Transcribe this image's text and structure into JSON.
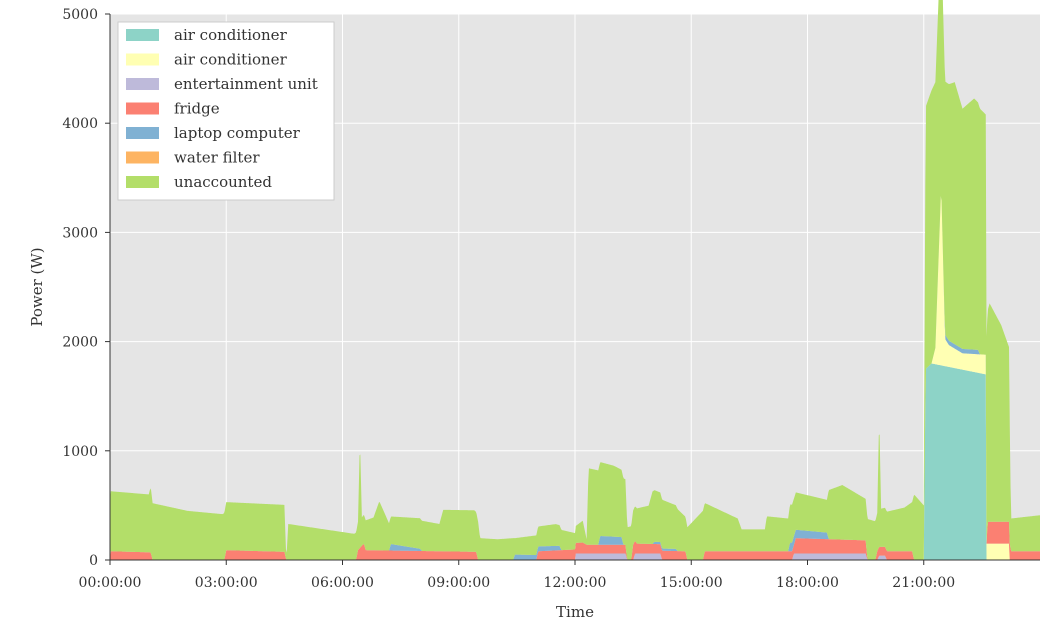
{
  "chart_data": {
    "type": "area",
    "stacked": true,
    "title": "",
    "xlabel": "Time",
    "ylabel": "Power (W)",
    "ylim": [
      0,
      5000
    ],
    "xlim_hours": [
      0,
      24
    ],
    "x_ticks": [
      "00:00:00",
      "03:00:00",
      "06:00:00",
      "09:00:00",
      "12:00:00",
      "15:00:00",
      "18:00:00",
      "21:00:00"
    ],
    "y_ticks": [
      "0",
      "1000",
      "2000",
      "3000",
      "4000",
      "5000"
    ],
    "grid": true,
    "legend_position": "top-left",
    "x_unit": "hours since 00:00:00",
    "series": [
      {
        "name": "air conditioner",
        "color": "#8dd3c7",
        "points": [
          [
            0,
            0
          ],
          [
            21.0,
            0
          ],
          [
            21.05,
            1750
          ],
          [
            21.2,
            1800
          ],
          [
            22.6,
            1700
          ],
          [
            22.62,
            0
          ],
          [
            24,
            0
          ]
        ]
      },
      {
        "name": "air conditioner",
        "color": "#ffffb3",
        "points": [
          [
            0,
            0
          ],
          [
            21.2,
            0
          ],
          [
            21.3,
            150
          ],
          [
            21.45,
            1650
          ],
          [
            21.55,
            250
          ],
          [
            21.65,
            200
          ],
          [
            22.0,
            150
          ],
          [
            22.6,
            180
          ],
          [
            22.62,
            150
          ],
          [
            23.2,
            150
          ],
          [
            23.22,
            0
          ],
          [
            24,
            0
          ]
        ]
      },
      {
        "name": "entertainment unit",
        "color": "#bebada",
        "points": [
          [
            0,
            0
          ],
          [
            12.0,
            0
          ],
          [
            12.02,
            60
          ],
          [
            13.3,
            60
          ],
          [
            13.35,
            0
          ],
          [
            13.5,
            0
          ],
          [
            13.55,
            60
          ],
          [
            14.2,
            60
          ],
          [
            14.25,
            0
          ],
          [
            17.6,
            0
          ],
          [
            17.65,
            60
          ],
          [
            19.5,
            60
          ],
          [
            19.55,
            0
          ],
          [
            19.8,
            0
          ],
          [
            19.85,
            40
          ],
          [
            20.0,
            40
          ],
          [
            20.05,
            0
          ],
          [
            24,
            0
          ]
        ]
      },
      {
        "name": "fridge",
        "color": "#fb8072",
        "points": [
          [
            0,
            0
          ],
          [
            0.02,
            80
          ],
          [
            1.05,
            70
          ],
          [
            1.1,
            0
          ],
          [
            2.95,
            0
          ],
          [
            3.0,
            90
          ],
          [
            4.5,
            75
          ],
          [
            4.55,
            0
          ],
          [
            6.35,
            0
          ],
          [
            6.4,
            90
          ],
          [
            6.55,
            150
          ],
          [
            6.6,
            90
          ],
          [
            9.45,
            75
          ],
          [
            9.5,
            0
          ],
          [
            11.0,
            0
          ],
          [
            11.05,
            80
          ],
          [
            12.2,
            100
          ],
          [
            12.3,
            80
          ],
          [
            13.3,
            80
          ],
          [
            13.35,
            0
          ],
          [
            13.45,
            0
          ],
          [
            13.5,
            140
          ],
          [
            13.6,
            90
          ],
          [
            14.85,
            80
          ],
          [
            14.9,
            0
          ],
          [
            15.3,
            0
          ],
          [
            15.35,
            80
          ],
          [
            17.65,
            80
          ],
          [
            17.7,
            140
          ],
          [
            19.5,
            120
          ],
          [
            19.55,
            0
          ],
          [
            19.75,
            0
          ],
          [
            19.8,
            80
          ],
          [
            20.7,
            80
          ],
          [
            20.75,
            0
          ],
          [
            22.62,
            0
          ],
          [
            22.65,
            200
          ],
          [
            23.2,
            200
          ],
          [
            23.25,
            80
          ],
          [
            24,
            80
          ]
        ]
      },
      {
        "name": "laptop computer",
        "color": "#80b1d3",
        "points": [
          [
            0,
            0
          ],
          [
            7.2,
            0
          ],
          [
            7.25,
            60
          ],
          [
            8.0,
            20
          ],
          [
            8.05,
            0
          ],
          [
            10.4,
            0
          ],
          [
            10.45,
            50
          ],
          [
            11.6,
            40
          ],
          [
            11.65,
            0
          ],
          [
            12.6,
            0
          ],
          [
            12.65,
            80
          ],
          [
            13.2,
            70
          ],
          [
            13.25,
            0
          ],
          [
            14.0,
            0
          ],
          [
            14.05,
            20
          ],
          [
            14.6,
            20
          ],
          [
            14.65,
            0
          ],
          [
            17.5,
            0
          ],
          [
            17.55,
            80
          ],
          [
            18.5,
            60
          ],
          [
            18.55,
            0
          ],
          [
            21.5,
            0
          ],
          [
            21.55,
            40
          ],
          [
            22.4,
            40
          ],
          [
            22.45,
            0
          ],
          [
            24,
            0
          ]
        ]
      },
      {
        "name": "water filter",
        "color": "#fdb462",
        "points": [
          [
            0,
            0
          ],
          [
            24,
            0
          ]
        ]
      },
      {
        "name": "unaccounted",
        "color": "#b3de69",
        "points": [
          [
            0,
            550
          ],
          [
            1.0,
            530
          ],
          [
            1.05,
            600
          ],
          [
            1.1,
            520
          ],
          [
            2.0,
            450
          ],
          [
            2.9,
            420
          ],
          [
            3.0,
            440
          ],
          [
            4.5,
            430
          ],
          [
            4.55,
            0
          ],
          [
            4.6,
            330
          ],
          [
            6.3,
            240
          ],
          [
            6.4,
            260
          ],
          [
            6.45,
            1000
          ],
          [
            6.5,
            260
          ],
          [
            6.8,
            300
          ],
          [
            6.95,
            450
          ],
          [
            7.2,
            250
          ],
          [
            8.0,
            280
          ],
          [
            8.5,
            250
          ],
          [
            8.6,
            380
          ],
          [
            9.4,
            380
          ],
          [
            9.5,
            350
          ],
          [
            9.55,
            200
          ],
          [
            10.0,
            190
          ],
          [
            10.4,
            200
          ],
          [
            10.45,
            150
          ],
          [
            11.0,
            180
          ],
          [
            11.5,
            200
          ],
          [
            12.0,
            150
          ],
          [
            12.2,
            200
          ],
          [
            12.3,
            50
          ],
          [
            12.35,
            700
          ],
          [
            13.0,
            650
          ],
          [
            13.3,
            600
          ],
          [
            13.35,
            300
          ],
          [
            13.9,
            350
          ],
          [
            14.0,
            480
          ],
          [
            14.6,
            400
          ],
          [
            14.9,
            300
          ],
          [
            15.3,
            450
          ],
          [
            16.2,
            300
          ],
          [
            16.3,
            200
          ],
          [
            16.9,
            200
          ],
          [
            16.95,
            320
          ],
          [
            17.5,
            300
          ],
          [
            17.55,
            350
          ],
          [
            18.5,
            300
          ],
          [
            18.55,
            450
          ],
          [
            18.9,
            500
          ],
          [
            19.5,
            380
          ],
          [
            19.8,
            350
          ],
          [
            19.85,
            1200
          ],
          [
            19.9,
            350
          ],
          [
            20.5,
            400
          ],
          [
            20.7,
            450
          ],
          [
            20.75,
            600
          ],
          [
            21.0,
            500
          ],
          [
            21.05,
            2400
          ],
          [
            21.2,
            2500
          ],
          [
            21.5,
            2300
          ],
          [
            21.8,
            2400
          ],
          [
            22.0,
            2200
          ],
          [
            22.3,
            2300
          ],
          [
            22.6,
            2200
          ],
          [
            22.62,
            1900
          ],
          [
            22.7,
            2000
          ],
          [
            23.0,
            1800
          ],
          [
            23.2,
            1600
          ],
          [
            23.25,
            300
          ],
          [
            24,
            330
          ]
        ]
      }
    ]
  }
}
